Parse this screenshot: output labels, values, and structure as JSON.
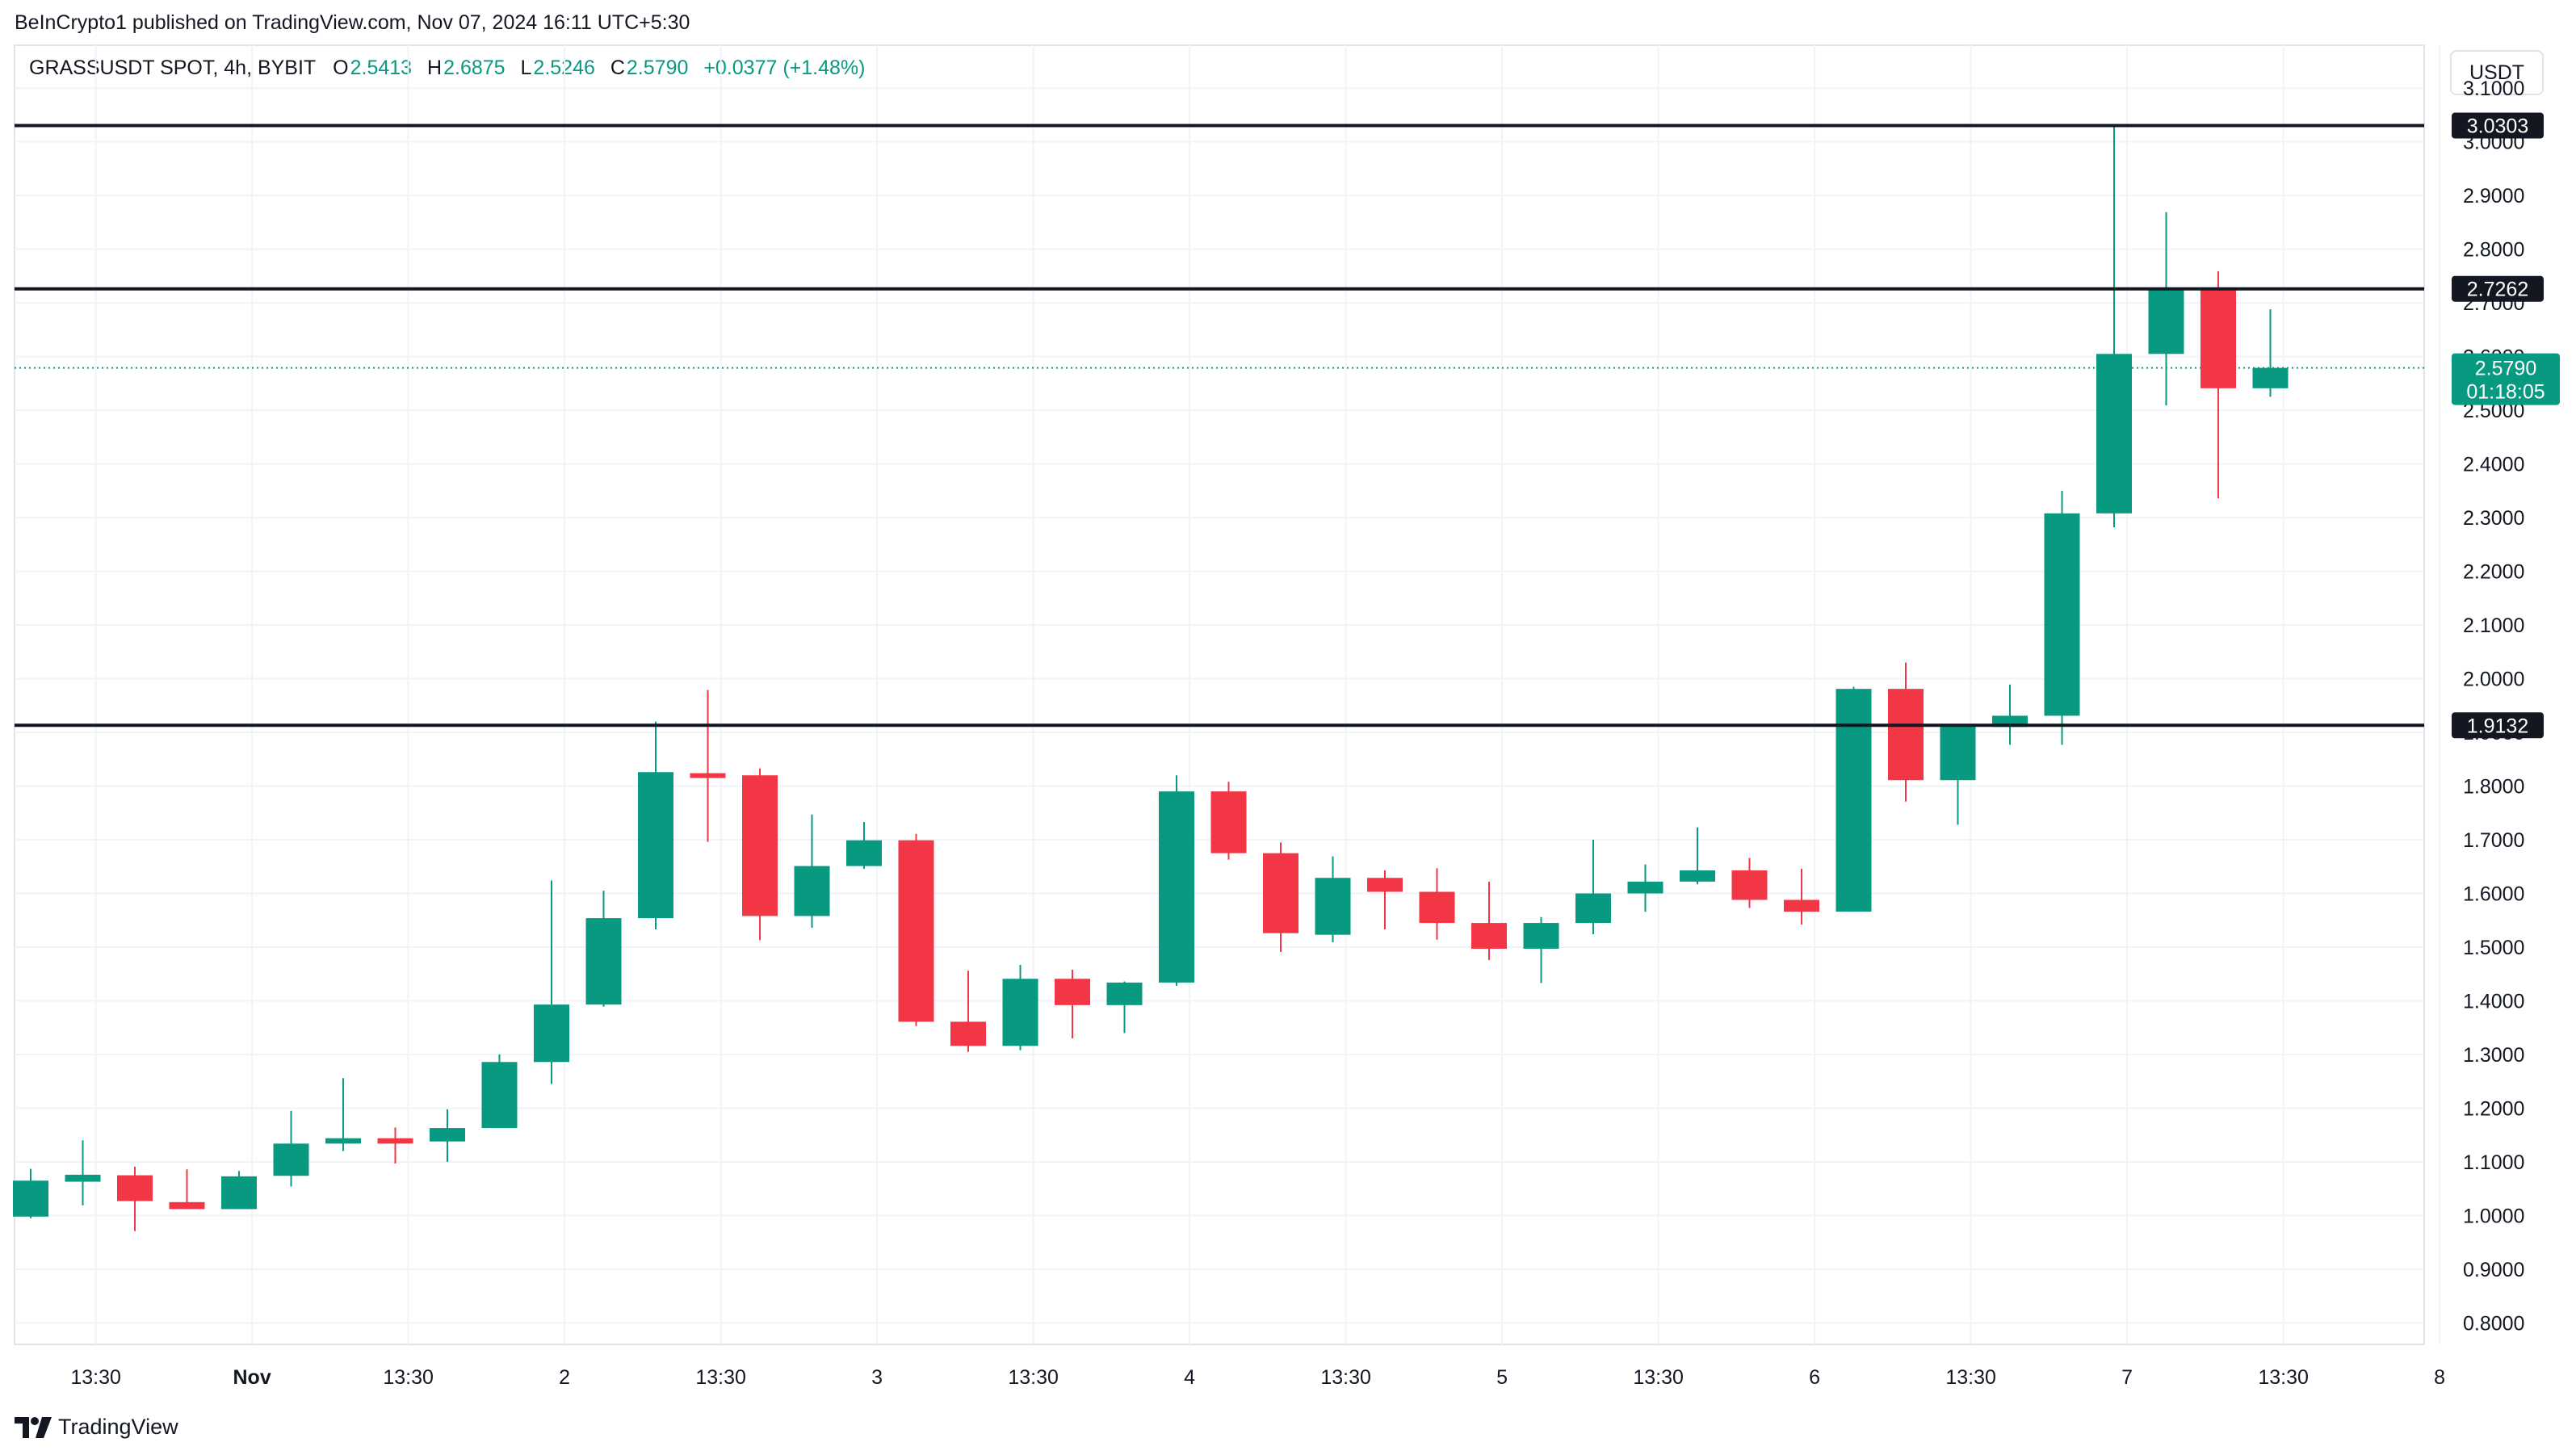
{
  "header": {
    "published": "BeInCrypto1 published on TradingView.com, Nov 07, 2024 16:11 UTC+5:30"
  },
  "currency_button": "USDT",
  "legend": {
    "symbol": "GRASSUSDT SPOT, 4h, BYBIT",
    "open_label": "O",
    "open": "2.5413",
    "high_label": "H",
    "high": "2.6875",
    "low_label": "L",
    "low": "2.5246",
    "close_label": "C",
    "close": "2.5790",
    "change": "+0.0377 (+1.48%)"
  },
  "footer": {
    "brand": "TradingView",
    "logo_icon": "tradingview-logo-icon"
  },
  "colors": {
    "up": "#089981",
    "down": "#f23645",
    "line": "#131722",
    "grid": "#f0f3fa"
  },
  "chart_data": {
    "type": "candlestick",
    "title": "GRASSUSDT SPOT, 4h, BYBIT",
    "y_range": [
      0.76,
      3.18
    ],
    "y_ticks": [
      "0.8000",
      "0.9000",
      "1.0000",
      "1.1000",
      "1.2000",
      "1.3000",
      "1.4000",
      "1.5000",
      "1.6000",
      "1.7000",
      "1.8000",
      "1.9000",
      "2.0000",
      "2.1000",
      "2.2000",
      "2.3000",
      "2.4000",
      "2.5000",
      "2.6000",
      "2.7000",
      "2.8000",
      "2.9000",
      "3.0000",
      "3.1000"
    ],
    "x_ticks": [
      {
        "index": 1.25,
        "label": "13:30"
      },
      {
        "index": 4.25,
        "label": "Nov"
      },
      {
        "index": 7.25,
        "label": "13:30"
      },
      {
        "index": 10.25,
        "label": "2"
      },
      {
        "index": 13.25,
        "label": "13:30"
      },
      {
        "index": 16.25,
        "label": "3"
      },
      {
        "index": 19.25,
        "label": "13:30"
      },
      {
        "index": 22.25,
        "label": "4"
      },
      {
        "index": 25.25,
        "label": "13:30"
      },
      {
        "index": 28.25,
        "label": "5"
      },
      {
        "index": 31.25,
        "label": "13:30"
      },
      {
        "index": 34.25,
        "label": "6"
      },
      {
        "index": 37.25,
        "label": "13:30"
      },
      {
        "index": 40.25,
        "label": "7"
      },
      {
        "index": 43.25,
        "label": "13:30"
      },
      {
        "index": 46.25,
        "label": "8"
      }
    ],
    "candles": [
      {
        "o": 0.998,
        "h": 1.087,
        "l": 0.995,
        "c": 1.065
      },
      {
        "o": 1.063,
        "h": 1.14,
        "l": 1.019,
        "c": 1.076
      },
      {
        "o": 1.075,
        "h": 1.091,
        "l": 0.971,
        "c": 1.027
      },
      {
        "o": 1.025,
        "h": 1.086,
        "l": 1.012,
        "c": 1.012
      },
      {
        "o": 1.012,
        "h": 1.083,
        "l": 1.012,
        "c": 1.073
      },
      {
        "o": 1.074,
        "h": 1.195,
        "l": 1.054,
        "c": 1.134
      },
      {
        "o": 1.134,
        "h": 1.256,
        "l": 1.12,
        "c": 1.144
      },
      {
        "o": 1.144,
        "h": 1.164,
        "l": 1.097,
        "c": 1.134
      },
      {
        "o": 1.138,
        "h": 1.198,
        "l": 1.1,
        "c": 1.163
      },
      {
        "o": 1.163,
        "h": 1.3,
        "l": 1.163,
        "c": 1.286
      },
      {
        "o": 1.286,
        "h": 1.624,
        "l": 1.245,
        "c": 1.393
      },
      {
        "o": 1.393,
        "h": 1.605,
        "l": 1.389,
        "c": 1.554
      },
      {
        "o": 1.554,
        "h": 1.92,
        "l": 1.533,
        "c": 1.826
      },
      {
        "o": 1.824,
        "h": 1.979,
        "l": 1.696,
        "c": 1.815
      },
      {
        "o": 1.82,
        "h": 1.833,
        "l": 1.513,
        "c": 1.558
      },
      {
        "o": 1.558,
        "h": 1.747,
        "l": 1.536,
        "c": 1.651
      },
      {
        "o": 1.651,
        "h": 1.733,
        "l": 1.646,
        "c": 1.699
      },
      {
        "o": 1.699,
        "h": 1.711,
        "l": 1.353,
        "c": 1.361
      },
      {
        "o": 1.361,
        "h": 1.456,
        "l": 1.305,
        "c": 1.316
      },
      {
        "o": 1.316,
        "h": 1.467,
        "l": 1.308,
        "c": 1.441
      },
      {
        "o": 1.441,
        "h": 1.458,
        "l": 1.33,
        "c": 1.392
      },
      {
        "o": 1.392,
        "h": 1.436,
        "l": 1.34,
        "c": 1.434
      },
      {
        "o": 1.434,
        "h": 1.82,
        "l": 1.428,
        "c": 1.79
      },
      {
        "o": 1.79,
        "h": 1.808,
        "l": 1.663,
        "c": 1.675
      },
      {
        "o": 1.675,
        "h": 1.695,
        "l": 1.491,
        "c": 1.526
      },
      {
        "o": 1.523,
        "h": 1.669,
        "l": 1.509,
        "c": 1.629
      },
      {
        "o": 1.629,
        "h": 1.643,
        "l": 1.533,
        "c": 1.603
      },
      {
        "o": 1.603,
        "h": 1.647,
        "l": 1.514,
        "c": 1.545
      },
      {
        "o": 1.545,
        "h": 1.622,
        "l": 1.476,
        "c": 1.497
      },
      {
        "o": 1.497,
        "h": 1.556,
        "l": 1.433,
        "c": 1.545
      },
      {
        "o": 1.545,
        "h": 1.7,
        "l": 1.524,
        "c": 1.6
      },
      {
        "o": 1.6,
        "h": 1.654,
        "l": 1.566,
        "c": 1.622
      },
      {
        "o": 1.622,
        "h": 1.723,
        "l": 1.617,
        "c": 1.643
      },
      {
        "o": 1.643,
        "h": 1.666,
        "l": 1.573,
        "c": 1.588
      },
      {
        "o": 1.588,
        "h": 1.646,
        "l": 1.542,
        "c": 1.566
      },
      {
        "o": 1.566,
        "h": 1.985,
        "l": 1.566,
        "c": 1.981
      },
      {
        "o": 1.981,
        "h": 2.03,
        "l": 1.771,
        "c": 1.811
      },
      {
        "o": 1.811,
        "h": 1.913,
        "l": 1.728,
        "c": 1.915
      },
      {
        "o": 1.91,
        "h": 1.989,
        "l": 1.877,
        "c": 1.931
      },
      {
        "o": 1.931,
        "h": 2.35,
        "l": 1.877,
        "c": 2.308
      },
      {
        "o": 2.308,
        "h": 3.03,
        "l": 2.282,
        "c": 2.605
      },
      {
        "o": 2.605,
        "h": 2.869,
        "l": 2.509,
        "c": 2.726
      },
      {
        "o": 2.726,
        "h": 2.759,
        "l": 2.336,
        "c": 2.541
      },
      {
        "o": 2.541,
        "h": 2.688,
        "l": 2.525,
        "c": 2.579
      }
    ],
    "horizontal_lines": [
      {
        "value": 3.0303,
        "label": "3.0303"
      },
      {
        "value": 2.7262,
        "label": "2.7262"
      },
      {
        "value": 1.9132,
        "label": "1.9132"
      }
    ],
    "last_price": {
      "value": 2.579,
      "label": "2.5790",
      "countdown": "01:18:05"
    }
  }
}
